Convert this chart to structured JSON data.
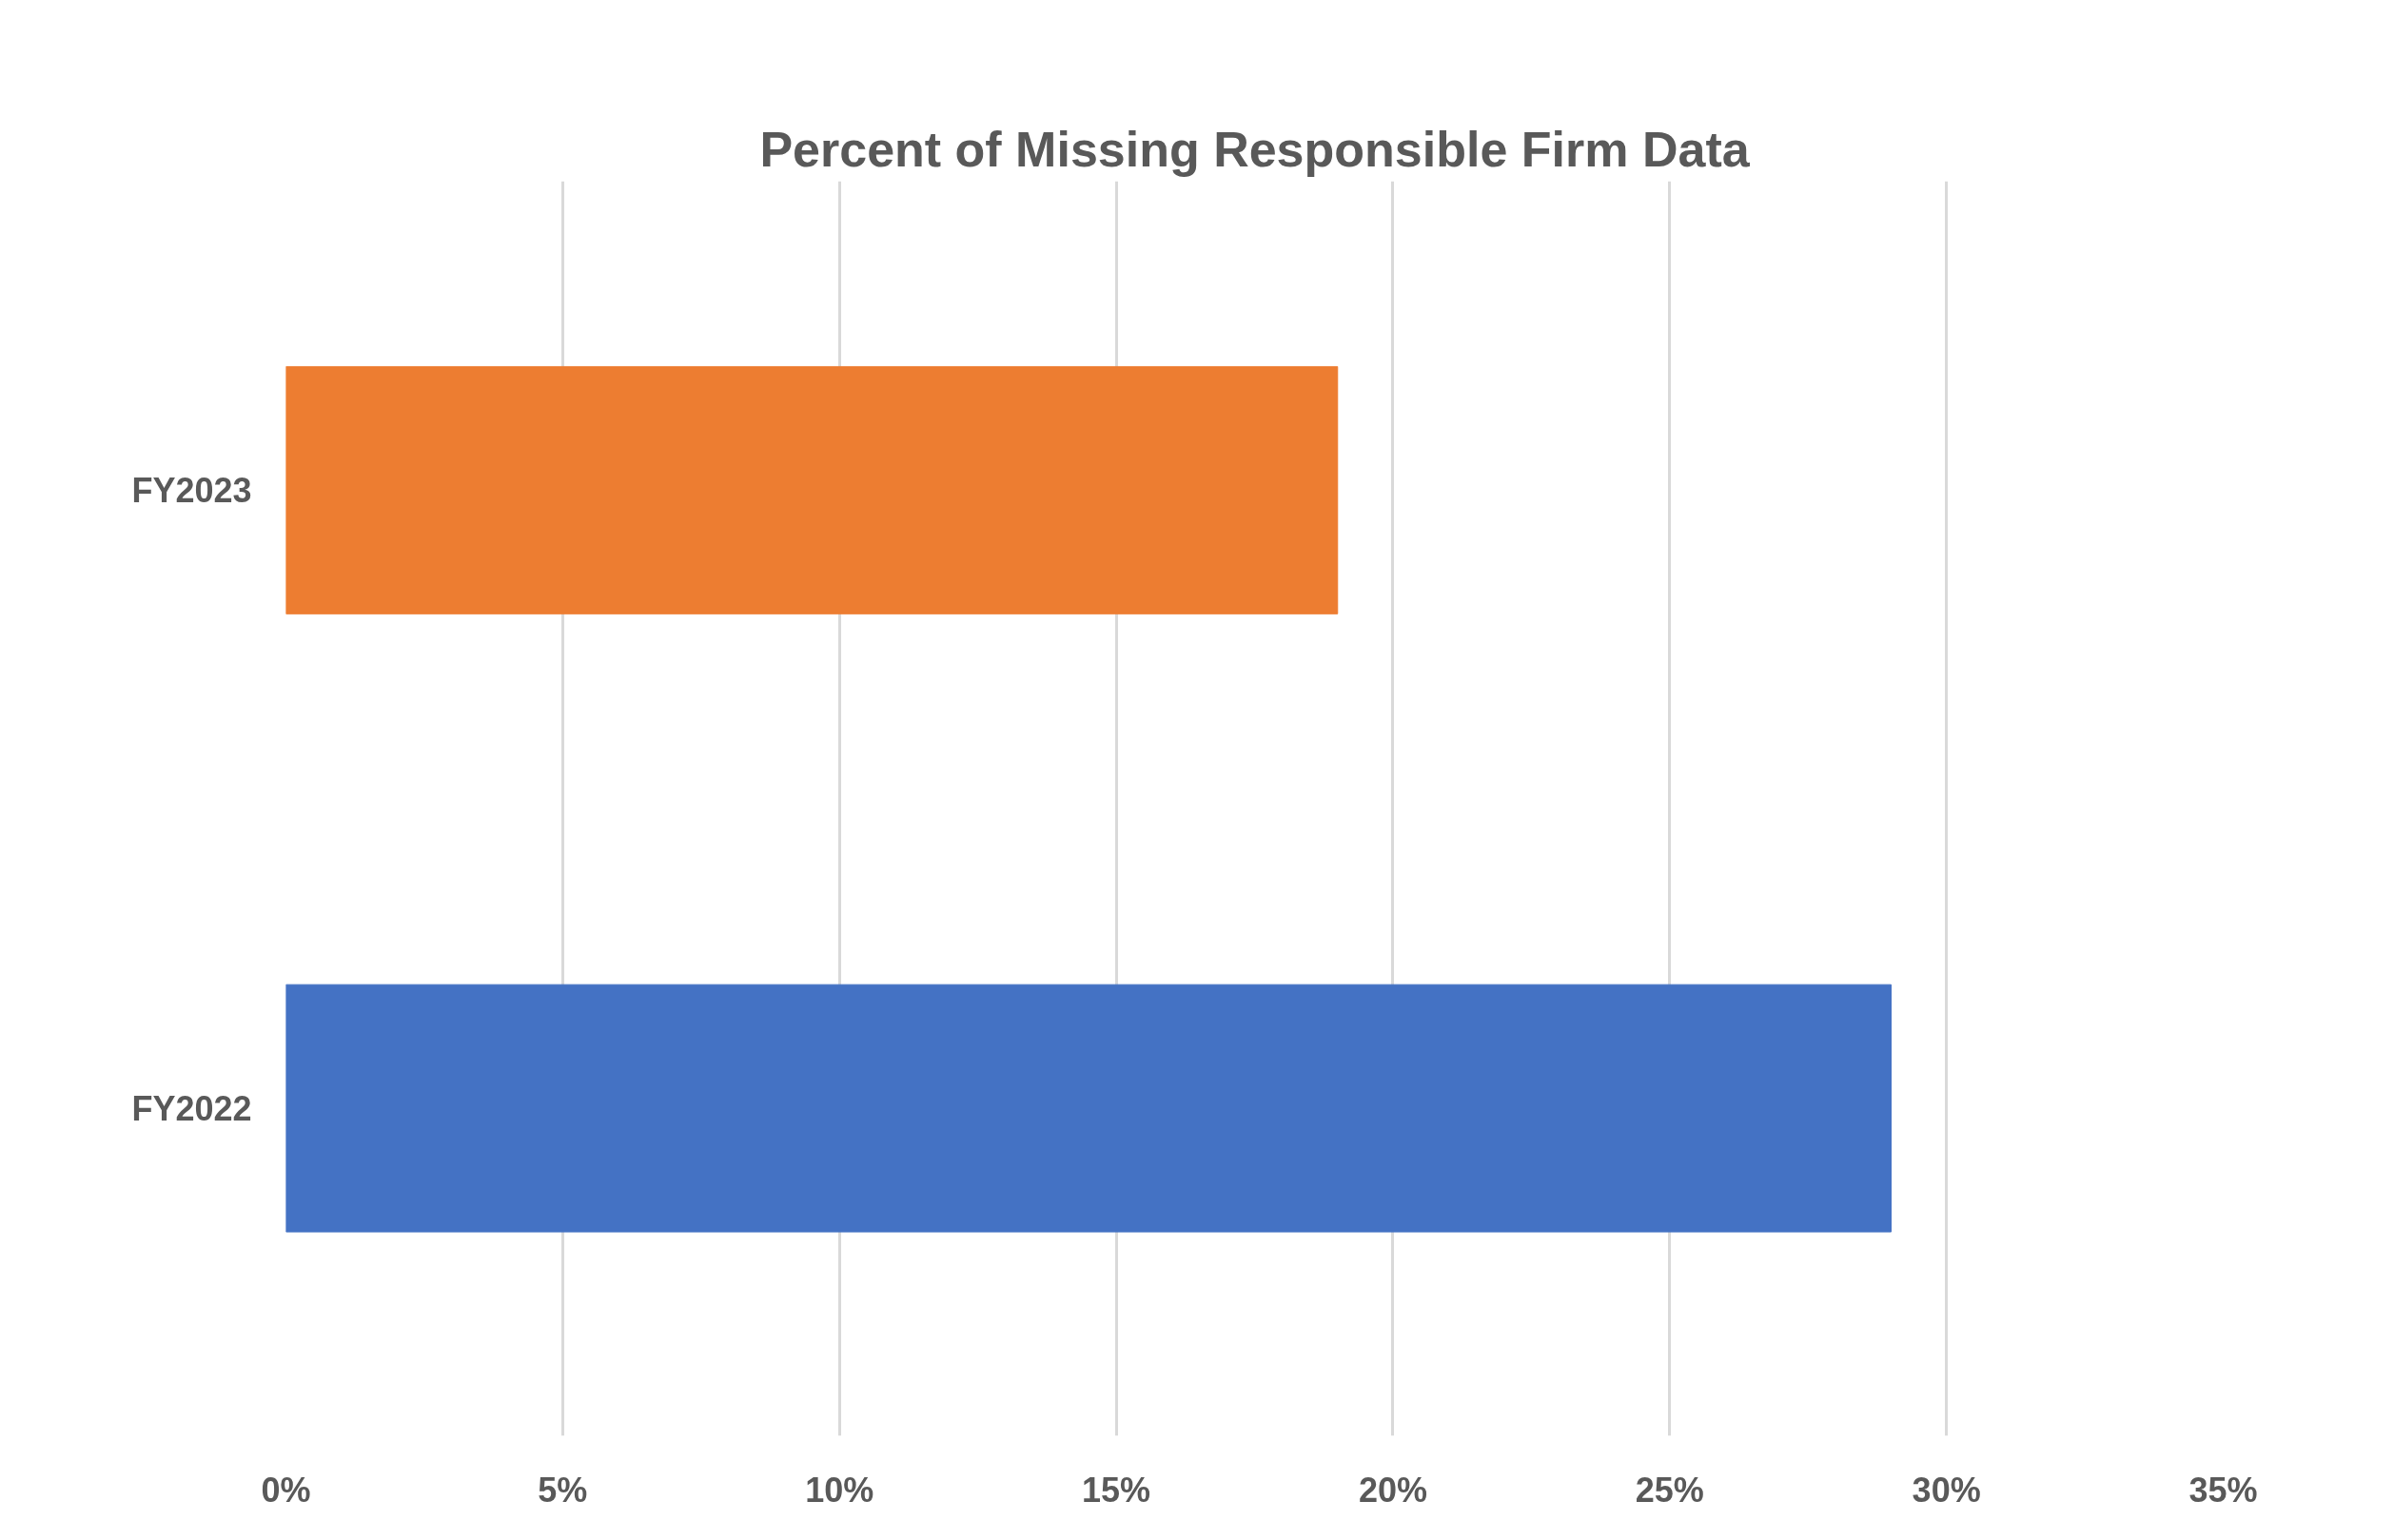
{
  "chart_data": {
    "type": "bar",
    "orientation": "horizontal",
    "title": "Percent of Missing Responsible Firm Data",
    "categories": [
      "FY2023",
      "FY2022"
    ],
    "values": [
      19,
      29
    ],
    "colors": [
      "#ed7d31",
      "#4472c4"
    ],
    "xlim": [
      0,
      35
    ],
    "xticks": [
      {
        "value": 0,
        "label": "0%"
      },
      {
        "value": 5,
        "label": "5%"
      },
      {
        "value": 10,
        "label": "10%"
      },
      {
        "value": 15,
        "label": "15%"
      },
      {
        "value": 20,
        "label": "20%"
      },
      {
        "value": 25,
        "label": "25%"
      },
      {
        "value": 30,
        "label": "30%"
      },
      {
        "value": 35,
        "label": "35%"
      }
    ],
    "grid": "x"
  }
}
